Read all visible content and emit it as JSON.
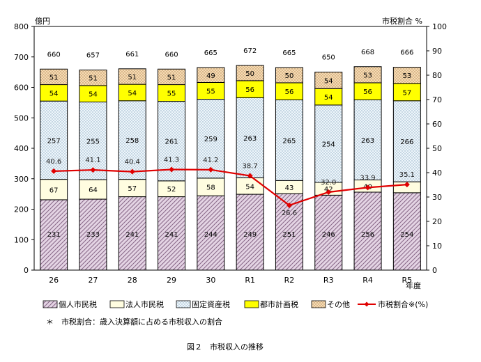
{
  "chart_data": {
    "type": "bar",
    "stacked": true,
    "categories": [
      "26",
      "27",
      "28",
      "29",
      "30",
      "R1",
      "R2",
      "R3",
      "R4",
      "R5"
    ],
    "series": [
      {
        "name": "個人市民税",
        "values": [
          231,
          233,
          241,
          241,
          244,
          249,
          251,
          246,
          256,
          254
        ],
        "color": "#d8c8d8",
        "pattern": "diagonal-hatch"
      },
      {
        "name": "法人市民税",
        "values": [
          67,
          64,
          57,
          52,
          58,
          54,
          43,
          42,
          40,
          36
        ],
        "color": "#fffde0",
        "pattern": "none"
      },
      {
        "name": "固定資産税",
        "values": [
          257,
          255,
          258,
          261,
          259,
          263,
          265,
          254,
          263,
          266
        ],
        "color": "#e8f2f8",
        "pattern": "dots"
      },
      {
        "name": "都市計画税",
        "values": [
          54,
          54,
          54,
          55,
          55,
          56,
          56,
          54,
          56,
          57
        ],
        "color": "#ffff00",
        "pattern": "none"
      },
      {
        "name": "その他",
        "values": [
          51,
          51,
          51,
          51,
          49,
          50,
          50,
          54,
          53,
          53
        ],
        "color": "#f4d6a8",
        "pattern": "dots"
      }
    ],
    "totals": [
      660,
      657,
      661,
      660,
      665,
      672,
      665,
      650,
      668,
      666
    ],
    "line_series": {
      "name": "市税割合※(%)",
      "values": [
        40.6,
        41.1,
        40.4,
        41.3,
        41.2,
        38.7,
        26.6,
        32.0,
        33.9,
        35.1
      ],
      "color": "#e00000",
      "axis": "right"
    },
    "left_axis": {
      "unit": "億円",
      "ylim": [
        0,
        800
      ],
      "ticks": [
        "0",
        "100",
        "200",
        "300",
        "400",
        "500",
        "600",
        "700",
        "800"
      ]
    },
    "right_axis": {
      "unit": "市税割合 %",
      "ylim": [
        0,
        100
      ],
      "ticks": [
        "0",
        "10",
        "20",
        "30",
        "40",
        "50",
        "60",
        "70",
        "80",
        "90",
        "100"
      ]
    },
    "xlabel": "年度",
    "legend_position": "bottom",
    "note": "＊　市税割合：歳入決算額に占める市税収入の割合",
    "caption": "図２　市税収入の推移",
    "totals_labels": [
      "660",
      "657",
      "661",
      "660",
      "665",
      "672",
      "665",
      "650",
      "668",
      "666"
    ],
    "line_labels": [
      "40.6",
      "41.1",
      "40.4",
      "41.3",
      "41.2",
      "38.7",
      "26.6",
      "32.0",
      "33.9",
      "35.1"
    ]
  }
}
